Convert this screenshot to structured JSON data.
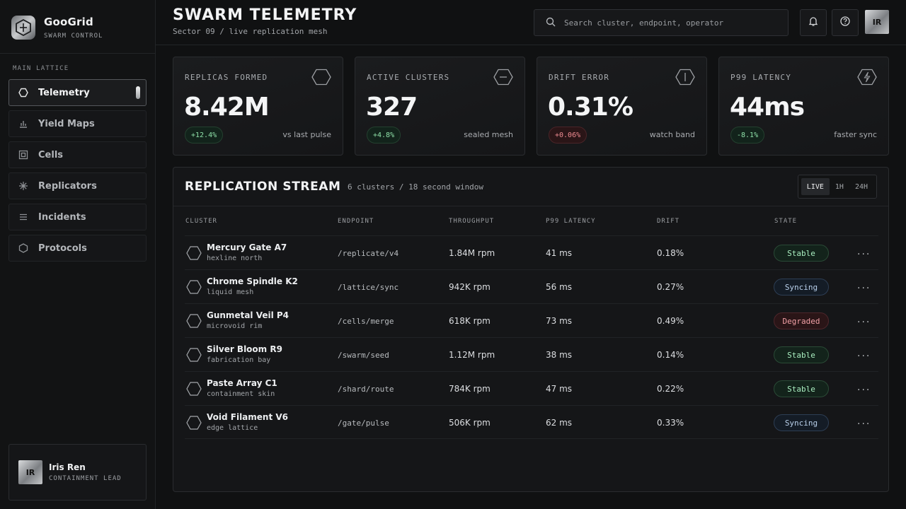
{
  "brand": {
    "name": "GooGrid",
    "subtitle": "SWARM CONTROL"
  },
  "sidebar": {
    "section_label": "MAIN LATTICE",
    "items": [
      {
        "label": "Telemetry",
        "icon": "hexagon-icon",
        "active": true
      },
      {
        "label": "Yield Maps",
        "icon": "bar-chart-icon",
        "active": false
      },
      {
        "label": "Cells",
        "icon": "cell-square-icon",
        "active": false
      },
      {
        "label": "Replicators",
        "icon": "asterisk-icon",
        "active": false
      },
      {
        "label": "Incidents",
        "icon": "list-icon",
        "active": false
      },
      {
        "label": "Protocols",
        "icon": "hexagon-icon",
        "active": false
      }
    ],
    "user": {
      "initials": "IR",
      "name": "Iris Ren",
      "role": "CONTAINMENT LEAD"
    }
  },
  "header": {
    "title": "SWARM TELEMETRY",
    "subtitle": "Sector 09 / live replication mesh",
    "search_placeholder": "Search cluster, endpoint, operator",
    "avatar_initials": "IR"
  },
  "stats": [
    {
      "label": "REPLICAS FORMED",
      "value": "8.42M",
      "delta": "+12.4%",
      "delta_tone": "good",
      "note": "vs last pulse",
      "icon": "hexagon-icon"
    },
    {
      "label": "ACTIVE CLUSTERS",
      "value": "327",
      "delta": "+4.8%",
      "delta_tone": "good",
      "note": "sealed mesh",
      "icon": "hexagon-minus-icon"
    },
    {
      "label": "DRIFT ERROR",
      "value": "0.31%",
      "delta": "+0.06%",
      "delta_tone": "bad",
      "note": "watch band",
      "icon": "hexagon-bar-icon"
    },
    {
      "label": "P99 LATENCY",
      "value": "44ms",
      "delta": "-8.1%",
      "delta_tone": "good",
      "note": "faster sync",
      "icon": "hexagon-bolt-icon"
    }
  ],
  "stream": {
    "title": "REPLICATION STREAM",
    "subtitle": "6 clusters / 18 second window",
    "ranges": [
      "LIVE",
      "1H",
      "24H"
    ],
    "active_range": "LIVE",
    "columns": [
      "CLUSTER",
      "ENDPOINT",
      "THROUGHPUT",
      "P99 LATENCY",
      "DRIFT",
      "STATE"
    ],
    "rows": [
      {
        "name": "Mercury Gate A7",
        "sub": "hexline north",
        "endpoint": "/replicate/v4",
        "throughput": "1.84M rpm",
        "latency": "41 ms",
        "drift": "0.18%",
        "state": "Stable"
      },
      {
        "name": "Chrome Spindle K2",
        "sub": "liquid mesh",
        "endpoint": "/lattice/sync",
        "throughput": "942K rpm",
        "latency": "56 ms",
        "drift": "0.27%",
        "state": "Syncing"
      },
      {
        "name": "Gunmetal Veil P4",
        "sub": "microvoid rim",
        "endpoint": "/cells/merge",
        "throughput": "618K rpm",
        "latency": "73 ms",
        "drift": "0.49%",
        "state": "Degraded"
      },
      {
        "name": "Silver Bloom R9",
        "sub": "fabrication bay",
        "endpoint": "/swarm/seed",
        "throughput": "1.12M rpm",
        "latency": "38 ms",
        "drift": "0.14%",
        "state": "Stable"
      },
      {
        "name": "Paste Array C1",
        "sub": "containment skin",
        "endpoint": "/shard/route",
        "throughput": "784K rpm",
        "latency": "47 ms",
        "drift": "0.22%",
        "state": "Stable"
      },
      {
        "name": "Void Filament V6",
        "sub": "edge lattice",
        "endpoint": "/gate/pulse",
        "throughput": "506K rpm",
        "latency": "62 ms",
        "drift": "0.33%",
        "state": "Syncing"
      }
    ],
    "more_label": "..."
  },
  "colors": {
    "background": "#101112",
    "panel": "#151618",
    "stable": "#a9eec0",
    "syncing": "#b8cfea",
    "degraded": "#f2a0a6"
  }
}
